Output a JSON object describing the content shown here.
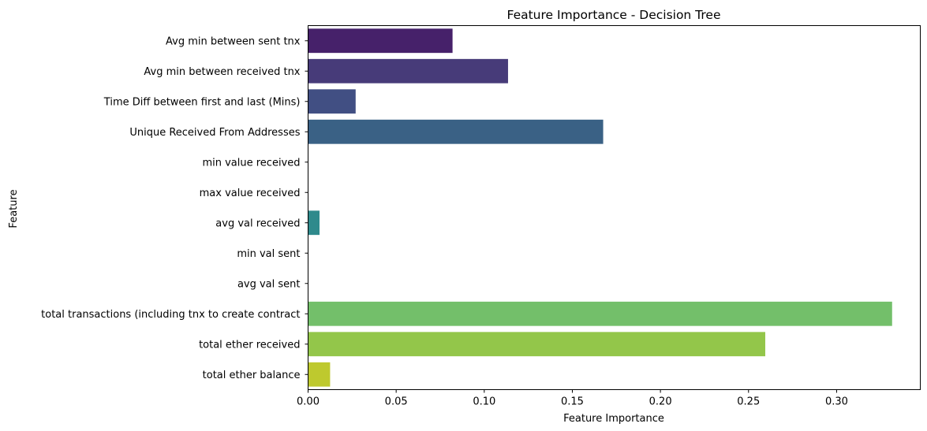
{
  "chart_data": {
    "type": "bar",
    "orientation": "horizontal",
    "title": "Feature Importance - Decision Tree",
    "xlabel": "Feature Importance",
    "ylabel": "Feature",
    "xlim": [
      0,
      0.3475
    ],
    "xticks": [
      0.0,
      0.05,
      0.1,
      0.15,
      0.2,
      0.25,
      0.3
    ],
    "xtick_labels": [
      "0.00",
      "0.05",
      "0.10",
      "0.15",
      "0.20",
      "0.25",
      "0.30"
    ],
    "grid": false,
    "palette": "viridis",
    "categories": [
      "Avg min between sent tnx",
      "Avg min between received tnx",
      "Time Diff between first and last (Mins)",
      "Unique Received From Addresses",
      "min value received",
      "max value received ",
      "avg val received",
      "min val sent",
      "avg val sent",
      "total transactions (including tnx to create contract",
      "total ether received",
      "total ether balance"
    ],
    "values": [
      0.082,
      0.1135,
      0.027,
      0.1675,
      0.0,
      0.0,
      0.0065,
      0.0,
      0.0,
      0.3315,
      0.2595,
      0.0125
    ],
    "colors": [
      "#46216a",
      "#473b79",
      "#414f83",
      "#3a6185",
      "#2f8a8c",
      "#2f8a8c",
      "#2f8a8c",
      "#6fbe6c",
      "#6fbe6c",
      "#73bf6a",
      "#93c64a",
      "#bec92e"
    ]
  }
}
